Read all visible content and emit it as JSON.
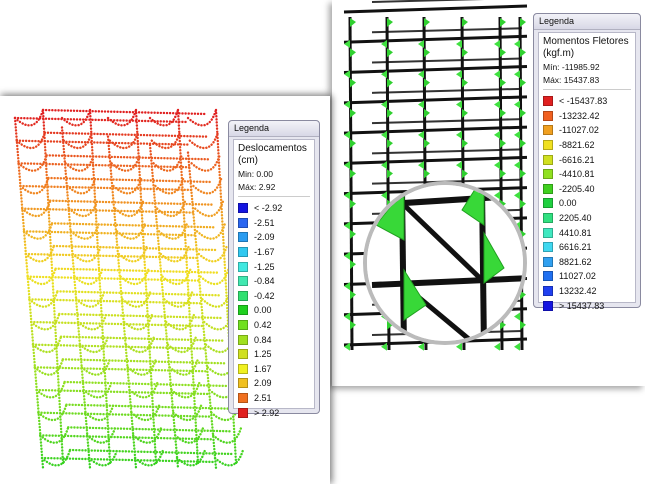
{
  "left_panel": {
    "legend": {
      "title": "Legenda",
      "heading": [
        "Deslocamentos",
        "(cm)"
      ],
      "min": "Min: 0.00",
      "max": "Máx: 2.92",
      "entries": [
        {
          "label": "< -2.92",
          "color": "#1414e0"
        },
        {
          "label": "-2.51",
          "color": "#2a66f0"
        },
        {
          "label": "-2.09",
          "color": "#2a9cf0"
        },
        {
          "label": "-1.67",
          "color": "#30c8f0"
        },
        {
          "label": "-1.25",
          "color": "#40e8e0"
        },
        {
          "label": "-0.84",
          "color": "#40e8b0"
        },
        {
          "label": "-0.42",
          "color": "#30e070"
        },
        {
          "label": "0.00",
          "color": "#20d020"
        },
        {
          "label": "0.42",
          "color": "#70e020"
        },
        {
          "label": "0.84",
          "color": "#a0e020"
        },
        {
          "label": "1.25",
          "color": "#d0e020"
        },
        {
          "label": "1.67",
          "color": "#f0f020"
        },
        {
          "label": "2.09",
          "color": "#f0c020"
        },
        {
          "label": "2.51",
          "color": "#f07020"
        },
        {
          "label": "> 2.92",
          "color": "#e02020"
        }
      ]
    }
  },
  "right_panel": {
    "legend": {
      "title": "Legenda",
      "heading": [
        "Momentos Fletores",
        "(kgf.m)"
      ],
      "min": "Mín: -11985.92",
      "max": "Máx: 15437.83",
      "entries": [
        {
          "label": "< -15437.83",
          "color": "#e02020"
        },
        {
          "label": "-13232.42",
          "color": "#f06020"
        },
        {
          "label": "-11027.02",
          "color": "#f0a020"
        },
        {
          "label": "-8821.62",
          "color": "#f0e020"
        },
        {
          "label": "-6616.21",
          "color": "#d0e020"
        },
        {
          "label": "-4410.81",
          "color": "#90e020"
        },
        {
          "label": "-2205.40",
          "color": "#40d020"
        },
        {
          "label": "0.00",
          "color": "#20d040"
        },
        {
          "label": "2205.40",
          "color": "#30e080"
        },
        {
          "label": "4410.81",
          "color": "#40e8c0"
        },
        {
          "label": "6616.21",
          "color": "#40d8f0"
        },
        {
          "label": "8821.62",
          "color": "#30a0f0"
        },
        {
          "label": "11027.02",
          "color": "#2070f0"
        },
        {
          "label": "13232.42",
          "color": "#2040f0"
        },
        {
          "label": "> 15437.83",
          "color": "#1414e0"
        }
      ]
    }
  }
}
